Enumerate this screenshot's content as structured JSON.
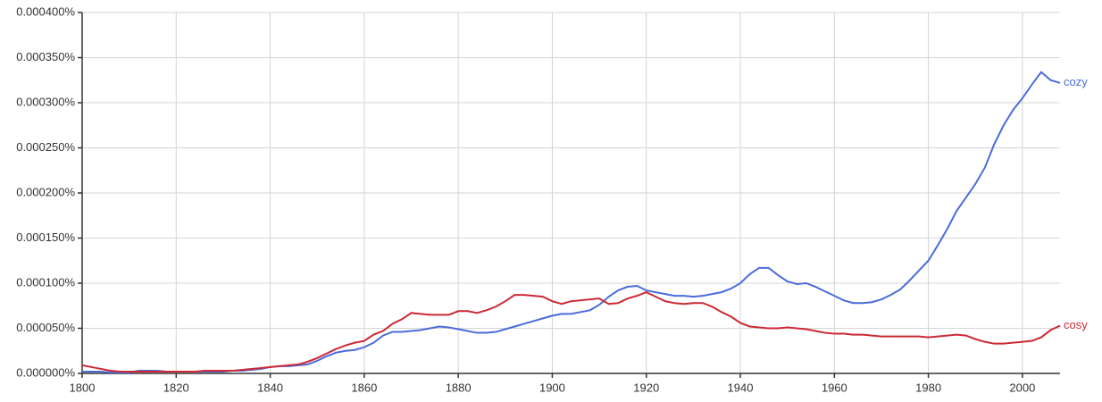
{
  "chart_data": {
    "type": "line",
    "x": [
      1800,
      1802,
      1804,
      1806,
      1808,
      1810,
      1812,
      1814,
      1816,
      1818,
      1820,
      1822,
      1824,
      1826,
      1828,
      1830,
      1832,
      1834,
      1836,
      1838,
      1840,
      1842,
      1844,
      1846,
      1848,
      1850,
      1852,
      1854,
      1856,
      1858,
      1860,
      1862,
      1864,
      1866,
      1868,
      1870,
      1872,
      1874,
      1876,
      1878,
      1880,
      1882,
      1884,
      1886,
      1888,
      1890,
      1892,
      1894,
      1896,
      1898,
      1900,
      1902,
      1904,
      1906,
      1908,
      1910,
      1912,
      1914,
      1916,
      1918,
      1920,
      1922,
      1924,
      1926,
      1928,
      1930,
      1932,
      1934,
      1936,
      1938,
      1940,
      1942,
      1944,
      1946,
      1948,
      1950,
      1952,
      1954,
      1956,
      1958,
      1960,
      1962,
      1964,
      1966,
      1968,
      1970,
      1972,
      1974,
      1976,
      1978,
      1980,
      1982,
      1984,
      1986,
      1988,
      1990,
      1992,
      1994,
      1996,
      1998,
      2000,
      2002,
      2004,
      2006,
      2008
    ],
    "series": [
      {
        "name": "cozy",
        "color": "#4a6cdb",
        "values": [
          2e-06,
          2e-06,
          2e-06,
          1e-06,
          1e-06,
          1e-06,
          3e-06,
          3e-06,
          3e-06,
          2e-06,
          2e-06,
          2e-06,
          2e-06,
          2e-06,
          2e-06,
          2e-06,
          3e-06,
          3e-06,
          4e-06,
          5e-06,
          7e-06,
          8e-06,
          8e-06,
          9e-06,
          1e-05,
          1.4e-05,
          1.9e-05,
          2.3e-05,
          2.5e-05,
          2.6e-05,
          2.9e-05,
          3.4e-05,
          4.2e-05,
          4.6e-05,
          4.6e-05,
          4.7e-05,
          4.8e-05,
          5e-05,
          5.2e-05,
          5.1e-05,
          4.9e-05,
          4.7e-05,
          4.5e-05,
          4.5e-05,
          4.6e-05,
          4.9e-05,
          5.2e-05,
          5.5e-05,
          5.8e-05,
          6.1e-05,
          6.4e-05,
          6.6e-05,
          6.6e-05,
          6.8e-05,
          7e-05,
          7.6e-05,
          8.5e-05,
          9.2e-05,
          9.6e-05,
          9.7e-05,
          9.2e-05,
          9e-05,
          8.8e-05,
          8.6e-05,
          8.6e-05,
          8.5e-05,
          8.6e-05,
          8.8e-05,
          9e-05,
          9.4e-05,
          0.0001,
          0.00011,
          0.000117,
          0.000117,
          0.000109,
          0.000102,
          9.9e-05,
          0.0001,
          9.6e-05,
          9.1e-05,
          8.6e-05,
          8.1e-05,
          7.8e-05,
          7.8e-05,
          7.9e-05,
          8.2e-05,
          8.7e-05,
          9.3e-05,
          0.000103,
          0.000114,
          0.000125,
          0.000142,
          0.00016,
          0.00018,
          0.000195,
          0.00021,
          0.000228,
          0.000254,
          0.000275,
          0.000292,
          0.000305,
          0.00032,
          0.000334,
          0.000325,
          0.000322
        ]
      },
      {
        "name": "cosy",
        "color": "#cc2935",
        "values": [
          9e-06,
          7e-06,
          5e-06,
          3e-06,
          2e-06,
          2e-06,
          2e-06,
          2e-06,
          2e-06,
          2e-06,
          2e-06,
          2e-06,
          2e-06,
          3e-06,
          3e-06,
          3e-06,
          3e-06,
          4e-06,
          5e-06,
          6e-06,
          7e-06,
          8e-06,
          9e-06,
          1e-05,
          1.3e-05,
          1.7e-05,
          2.2e-05,
          2.7e-05,
          3.1e-05,
          3.4e-05,
          3.6e-05,
          4.3e-05,
          4.7e-05,
          5.5e-05,
          6e-05,
          6.7e-05,
          6.6e-05,
          6.5e-05,
          6.5e-05,
          6.5e-05,
          6.9e-05,
          6.9e-05,
          6.7e-05,
          7e-05,
          7.4e-05,
          8e-05,
          8.7e-05,
          8.7e-05,
          8.6e-05,
          8.5e-05,
          8e-05,
          7.7e-05,
          8e-05,
          8.1e-05,
          8.2e-05,
          8.3e-05,
          7.7e-05,
          7.8e-05,
          8.3e-05,
          8.6e-05,
          9e-05,
          8.5e-05,
          8e-05,
          7.8e-05,
          7.7e-05,
          7.8e-05,
          7.8e-05,
          7.4e-05,
          6.8e-05,
          6.3e-05,
          5.6e-05,
          5.2e-05,
          5.1e-05,
          5e-05,
          5e-05,
          5.1e-05,
          5e-05,
          4.9e-05,
          4.7e-05,
          4.5e-05,
          4.4e-05,
          4.4e-05,
          4.3e-05,
          4.3e-05,
          4.2e-05,
          4.1e-05,
          4.1e-05,
          4.1e-05,
          4.1e-05,
          4.1e-05,
          4e-05,
          4.1e-05,
          4.2e-05,
          4.3e-05,
          4.2e-05,
          3.8e-05,
          3.5e-05,
          3.3e-05,
          3.3e-05,
          3.4e-05,
          3.5e-05,
          3.6e-05,
          4e-05,
          4.8e-05,
          5.3e-05
        ]
      }
    ],
    "xlim": [
      1800,
      2008
    ],
    "xticks": [
      1800,
      1820,
      1840,
      1860,
      1880,
      1900,
      1920,
      1940,
      1960,
      1980,
      2000
    ],
    "ylim": [
      0,
      0.0004
    ],
    "yticks": [
      {
        "value": 0,
        "label": "0.000000%"
      },
      {
        "value": 5e-05,
        "label": "0.000050%"
      },
      {
        "value": 0.0001,
        "label": "0.000100%"
      },
      {
        "value": 0.00015,
        "label": "0.000150%"
      },
      {
        "value": 0.0002,
        "label": "0.000200%"
      },
      {
        "value": 0.00025,
        "label": "0.000250%"
      },
      {
        "value": 0.0003,
        "label": "0.000300%"
      },
      {
        "value": 0.00035,
        "label": "0.000350%"
      },
      {
        "value": 0.0004,
        "label": "0.000400%"
      }
    ],
    "grid": true
  }
}
